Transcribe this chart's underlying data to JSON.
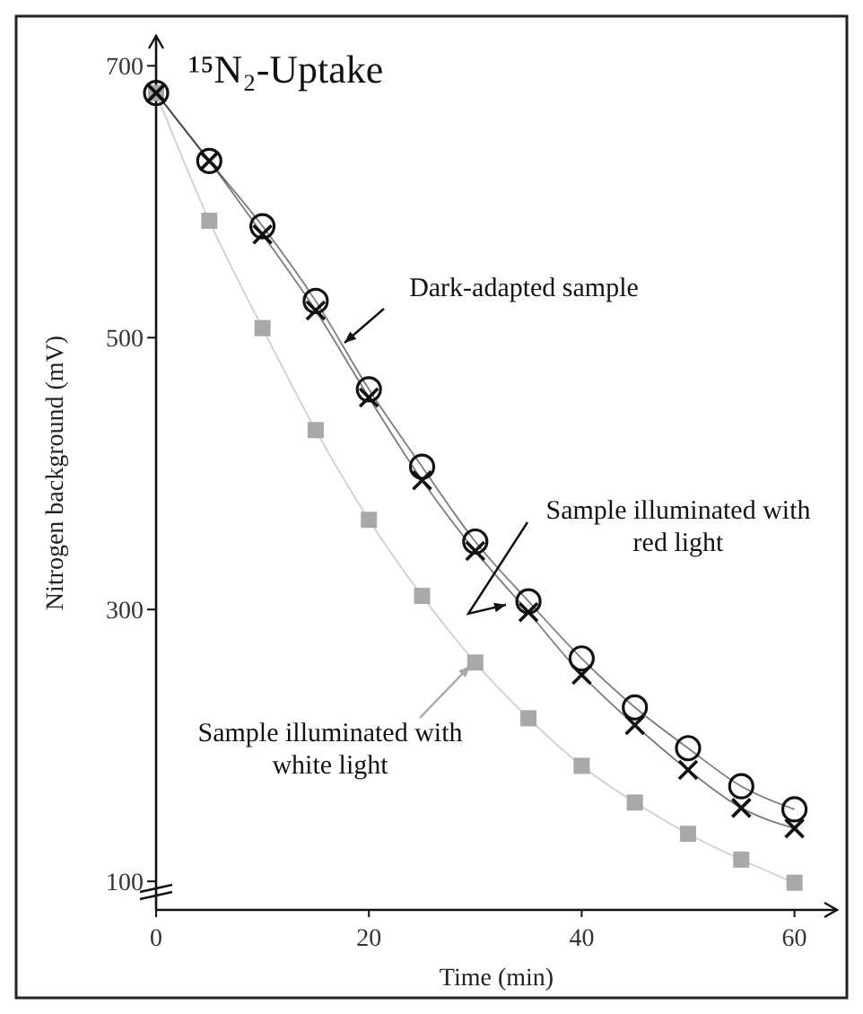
{
  "chart_data": {
    "type": "line",
    "title": "¹⁵N₂-Uptake",
    "xlabel": "Time (min)",
    "ylabel": "Nitrogen background (mV)",
    "x": [
      0,
      5,
      10,
      15,
      20,
      25,
      30,
      35,
      40,
      45,
      50,
      55,
      60
    ],
    "series": [
      {
        "name": "Sample illuminated with white light",
        "color": "#a8a8a8",
        "marker": "square",
        "values": [
          680,
          586,
          507,
          432,
          366,
          310,
          261,
          220,
          185,
          158,
          135,
          116,
          99
        ]
      },
      {
        "name": "Dark-adapted sample",
        "color": "#111111",
        "marker": "circle",
        "values": [
          680,
          630,
          582,
          527,
          462,
          405,
          350,
          306,
          264,
          228,
          198,
          170,
          153
        ]
      },
      {
        "name": "Sample illuminated with red light",
        "color": "#111111",
        "marker": "cross",
        "values": [
          680,
          630,
          576,
          520,
          456,
          395,
          343,
          298,
          252,
          215,
          182,
          154,
          139
        ]
      }
    ],
    "xlim": [
      0,
      64
    ],
    "ylim": [
      79,
      722
    ],
    "xticks": [
      0,
      20,
      40,
      60
    ],
    "yticks": [
      100,
      300,
      500,
      700
    ],
    "grid": false,
    "line_style": "solid"
  }
}
